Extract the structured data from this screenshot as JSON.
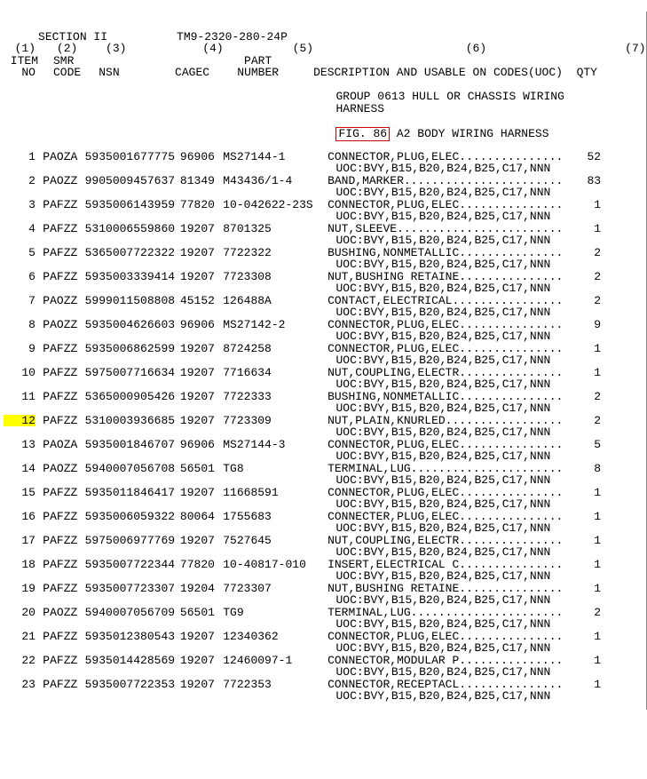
{
  "header": {
    "section_label": "SECTION II",
    "tm_number": "TM9-2320-280-24P",
    "col_nums": [
      "(1)",
      "(2)",
      "(3)",
      "(4)",
      "(5)",
      "(6)",
      "(7)"
    ],
    "col_head1": [
      "ITEM",
      "SMR",
      "",
      "",
      "PART",
      "",
      ""
    ],
    "col_head2": [
      "NO",
      "CODE",
      "NSN",
      "CAGEC",
      "NUMBER",
      "DESCRIPTION AND USABLE ON CODES(UOC)",
      "QTY"
    ],
    "group_line": "GROUP 0613 HULL OR CHASSIS WIRING",
    "group_line2": "HARNESS",
    "fig_label": "FIG. 86",
    "fig_text": " A2 BODY WIRING HARNESS"
  },
  "uoc_line": "UOC:BVY,B15,B20,B24,B25,C17,NNN",
  "highlight_item": 12,
  "rows": [
    {
      "item": 1,
      "smr": "PAOZA",
      "nsn": "5935001677775",
      "cagec": "96906",
      "part": "MS27144-1",
      "desc": "CONNECTOR,PLUG,ELEC",
      "qty": 52
    },
    {
      "item": 2,
      "smr": "PAOZZ",
      "nsn": "9905009457637",
      "cagec": "81349",
      "part": "M43436/1-4",
      "desc": "BAND,MARKER",
      "qty": 83
    },
    {
      "item": 3,
      "smr": "PAFZZ",
      "nsn": "5935006143959",
      "cagec": "77820",
      "part": "10-042622-23S",
      "desc": "CONNECTOR,PLUG,ELEC",
      "qty": 1
    },
    {
      "item": 4,
      "smr": "PAFZZ",
      "nsn": "5310006559860",
      "cagec": "19207",
      "part": "8701325",
      "desc": "NUT,SLEEVE",
      "qty": 1
    },
    {
      "item": 5,
      "smr": "PAFZZ",
      "nsn": "5365007722322",
      "cagec": "19207",
      "part": "7722322",
      "desc": "BUSHING,NONMETALLIC",
      "qty": 2
    },
    {
      "item": 6,
      "smr": "PAFZZ",
      "nsn": "5935003339414",
      "cagec": "19207",
      "part": "7723308",
      "desc": "NUT,BUSHING RETAINE",
      "qty": 2
    },
    {
      "item": 7,
      "smr": "PAOZZ",
      "nsn": "5999011508808",
      "cagec": "45152",
      "part": "126488A",
      "desc": "CONTACT,ELECTRICAL",
      "qty": 2
    },
    {
      "item": 8,
      "smr": "PAOZZ",
      "nsn": "5935004626603",
      "cagec": "96906",
      "part": "MS27142-2",
      "desc": "CONNECTOR,PLUG,ELEC",
      "qty": 9
    },
    {
      "item": 9,
      "smr": "PAFZZ",
      "nsn": "5935006862599",
      "cagec": "19207",
      "part": "8724258",
      "desc": "CONNECTOR,PLUG,ELEC",
      "qty": 1
    },
    {
      "item": 10,
      "smr": "PAFZZ",
      "nsn": "5975007716634",
      "cagec": "19207",
      "part": "7716634",
      "desc": "NUT,COUPLING,ELECTR",
      "qty": 1
    },
    {
      "item": 11,
      "smr": "PAFZZ",
      "nsn": "5365000905426",
      "cagec": "19207",
      "part": "7722333",
      "desc": "BUSHING,NONMETALLIC",
      "qty": 2
    },
    {
      "item": 12,
      "smr": "PAFZZ",
      "nsn": "5310003936685",
      "cagec": "19207",
      "part": "7723309",
      "desc": "NUT,PLAIN,KNURLED",
      "qty": 2
    },
    {
      "item": 13,
      "smr": "PAOZA",
      "nsn": "5935001846707",
      "cagec": "96906",
      "part": "MS27144-3",
      "desc": "CONNECTOR,PLUG,ELEC",
      "qty": 5
    },
    {
      "item": 14,
      "smr": "PAOZZ",
      "nsn": "5940007056708",
      "cagec": "56501",
      "part": "TG8",
      "desc": "TERMINAL,LUG",
      "qty": 8
    },
    {
      "item": 15,
      "smr": "PAFZZ",
      "nsn": "5935011846417",
      "cagec": "19207",
      "part": "11668591",
      "desc": "CONNECTOR,PLUG,ELEC",
      "qty": 1
    },
    {
      "item": 16,
      "smr": "PAFZZ",
      "nsn": "5935006059322",
      "cagec": "80064",
      "part": "1755683",
      "desc": "CONNECTER,PLUG,ELEC",
      "qty": 1
    },
    {
      "item": 17,
      "smr": "PAFZZ",
      "nsn": "5975006977769",
      "cagec": "19207",
      "part": "7527645",
      "desc": "NUT,COUPLING,ELECTR",
      "qty": 1
    },
    {
      "item": 18,
      "smr": "PAFZZ",
      "nsn": "5935007722344",
      "cagec": "77820",
      "part": "10-40817-010",
      "desc": "INSERT,ELECTRICAL C",
      "qty": 1
    },
    {
      "item": 19,
      "smr": "PAFZZ",
      "nsn": "5935007723307",
      "cagec": "19204",
      "part": "7723307",
      "desc": "NUT,BUSHING RETAINE",
      "qty": 1
    },
    {
      "item": 20,
      "smr": "PAOZZ",
      "nsn": "5940007056709",
      "cagec": "56501",
      "part": "TG9",
      "desc": "TERMINAL,LUG",
      "qty": 2
    },
    {
      "item": 21,
      "smr": "PAFZZ",
      "nsn": "5935012380543",
      "cagec": "19207",
      "part": "12340362",
      "desc": "CONNECTOR,PLUG,ELEC",
      "qty": 1
    },
    {
      "item": 22,
      "smr": "PAFZZ",
      "nsn": "5935014428569",
      "cagec": "19207",
      "part": "12460097-1",
      "desc": "CONNECTOR,MODULAR P",
      "qty": 1
    },
    {
      "item": 23,
      "smr": "PAFZZ",
      "nsn": "5935007722353",
      "cagec": "19207",
      "part": "7722353",
      "desc": "CONNECTOR,RECEPTACL",
      "qty": 1
    }
  ],
  "desc_dot_width": 34
}
